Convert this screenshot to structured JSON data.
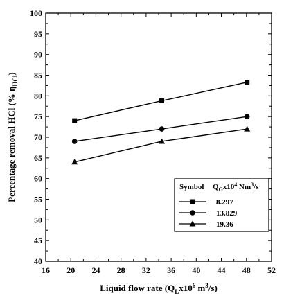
{
  "chart_data": {
    "type": "line",
    "xlabel": {
      "prefix": "Liquid flow rate (Q",
      "sub": "L",
      "mid": "x10",
      "sup1": "6",
      "mid2": " m",
      "sup2": "3",
      "suffix": "/s)"
    },
    "ylabel": {
      "prefix": "Percentage removal HCl (% η",
      "sub": "HCl",
      "suffix": ")"
    },
    "xlim": [
      16,
      52
    ],
    "ylim": [
      40,
      100
    ],
    "xticks": [
      16,
      20,
      24,
      28,
      32,
      36,
      40,
      44,
      48,
      52
    ],
    "yticks": [
      40,
      45,
      50,
      55,
      60,
      65,
      70,
      75,
      80,
      85,
      90,
      95,
      100
    ],
    "grid": false,
    "legend_position": "bottom-right",
    "legend_header": {
      "symbol": "Symbol",
      "q_prefix": "Q",
      "q_sub": "G",
      "q_mid": "x10",
      "q_sup1": "4",
      "q_mid2": " Nm",
      "q_sup2": "3",
      "q_suffix": "/s"
    },
    "series": [
      {
        "name": "8.297",
        "marker": "square",
        "x": [
          20.6,
          34.5,
          48.1
        ],
        "y": [
          74.0,
          78.8,
          83.3
        ]
      },
      {
        "name": "13.829",
        "marker": "circle",
        "x": [
          20.6,
          34.5,
          48.1
        ],
        "y": [
          69.0,
          72.0,
          75.0
        ]
      },
      {
        "name": "19.36",
        "marker": "triangle",
        "x": [
          20.6,
          34.5,
          48.1
        ],
        "y": [
          64.0,
          69.0,
          72.0
        ]
      }
    ]
  }
}
